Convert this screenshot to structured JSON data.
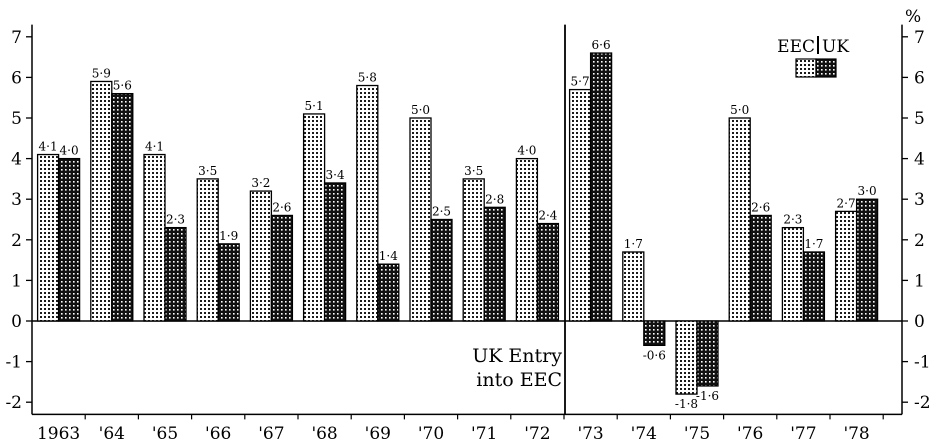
{
  "chart_data": {
    "type": "bar",
    "categories": [
      "1963",
      "'64",
      "'65",
      "'66",
      "'67",
      "'68",
      "'69",
      "'70",
      "'71",
      "'72",
      "'73",
      "'74",
      "'75",
      "'76",
      "'77",
      "'78"
    ],
    "series": [
      {
        "name": "EEC",
        "values": [
          4.1,
          5.9,
          4.1,
          3.5,
          3.2,
          5.1,
          5.8,
          5.0,
          3.5,
          4.0,
          5.7,
          1.7,
          -1.8,
          5.0,
          2.3,
          2.7
        ],
        "labels": [
          "4·1",
          "5·9",
          "4·1",
          "3·5",
          "3·2",
          "5·1",
          "5·8",
          "5·0",
          "3·5",
          "4·0",
          "5·7",
          "1·7",
          "-1·8",
          "5·0",
          "2·3",
          "2·7"
        ]
      },
      {
        "name": "UK",
        "values": [
          4.0,
          5.6,
          2.3,
          1.9,
          2.6,
          3.4,
          1.4,
          2.5,
          2.8,
          2.4,
          6.6,
          -0.6,
          -1.6,
          2.6,
          1.7,
          3.0
        ],
        "labels": [
          "4·0",
          "5·6",
          "2·3",
          "1·9",
          "2·6",
          "3·4",
          "1·4",
          "2·5",
          "2·8",
          "2·4",
          "6·6",
          "-0·6",
          "-1·6",
          "2·6",
          "1·7",
          "3·0"
        ]
      }
    ],
    "yticks": [
      "-2",
      "-1",
      "0",
      "1",
      "2",
      "3",
      "4",
      "5",
      "6",
      "7"
    ],
    "ylim": [
      -2.3,
      7.3
    ],
    "unit_label": "%",
    "annotation": [
      "UK Entry",
      "into EEC"
    ],
    "annotation_after_category": "'72",
    "legend": {
      "placement": "top-right",
      "eec_label": "EEC",
      "uk_label": "UK"
    },
    "grid": false,
    "colors": {
      "ink": "#000000",
      "eec_fill": "dotted-light",
      "uk_fill": "crosshatch-dark"
    }
  }
}
